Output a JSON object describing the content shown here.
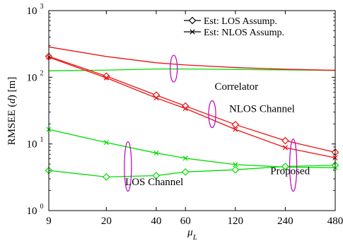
{
  "chart_data": {
    "type": "line",
    "title": "",
    "xlabel": "μ_L",
    "ylabel": "RMSEE (d) [m]",
    "x_scale": "log",
    "y_scale": "log",
    "xlim": [
      9,
      480
    ],
    "ylim": [
      1,
      1000
    ],
    "x_ticks": [
      9,
      20,
      40,
      60,
      120,
      240,
      480
    ],
    "x_tick_labels": [
      "9",
      "20",
      "40",
      "60",
      "120",
      "240",
      "480"
    ],
    "y_ticks": [
      1,
      10,
      100,
      1000
    ],
    "y_tick_labels": [
      "10",
      "10",
      "10",
      "10"
    ],
    "y_tick_exponents": [
      "0",
      "1",
      "2",
      "3"
    ],
    "grid": false,
    "legend": {
      "position": "top-right",
      "entries": [
        {
          "label": "Est: LOS Assump.",
          "marker": "diamond"
        },
        {
          "label": "Est: NLOS Assump.",
          "marker": "x"
        }
      ]
    },
    "annotations": [
      {
        "text": "Correlator",
        "x": 90,
        "y": 65
      },
      {
        "text": "NLOS Channel",
        "x": 110,
        "y": 30
      },
      {
        "text": "LOS Channel",
        "x": 26,
        "y": 2.4
      },
      {
        "text": "Proposed",
        "x": 195,
        "y": 3.5
      }
    ],
    "series": [
      {
        "group": "Correlator",
        "assumption": "LOS",
        "color": "#00dd00",
        "marker": "none",
        "x": [
          9,
          20,
          40,
          60,
          120,
          240,
          480
        ],
        "y": [
          125,
          128,
          133,
          133,
          131,
          129,
          127
        ]
      },
      {
        "group": "Correlator",
        "assumption": "NLOS",
        "color": "#ee1111",
        "marker": "none",
        "x": [
          9,
          20,
          40,
          60,
          120,
          240,
          480
        ],
        "y": [
          285,
          205,
          165,
          153,
          140,
          132,
          127
        ]
      },
      {
        "group": "Proposed",
        "channel": "NLOS",
        "assumption": "LOS",
        "color": "#ee1111",
        "marker": "diamond",
        "x": [
          9,
          20,
          40,
          60,
          120,
          240,
          480
        ],
        "y": [
          205,
          104,
          54,
          37,
          19.5,
          11.2,
          7.5
        ]
      },
      {
        "group": "Proposed",
        "channel": "NLOS",
        "assumption": "NLOS",
        "color": "#ee1111",
        "marker": "x",
        "x": [
          9,
          20,
          40,
          60,
          120,
          240,
          480
        ],
        "y": [
          200,
          98,
          49,
          34,
          16.5,
          8.8,
          6.2
        ]
      },
      {
        "group": "Proposed",
        "channel": "LOS",
        "assumption": "NLOS",
        "color": "#00dd00",
        "marker": "x",
        "x": [
          9,
          20,
          40,
          60,
          120,
          240,
          480
        ],
        "y": [
          16.5,
          10.5,
          7.3,
          6.1,
          4.9,
          4.5,
          4.4
        ]
      },
      {
        "group": "Proposed",
        "channel": "LOS",
        "assumption": "LOS",
        "color": "#00dd00",
        "marker": "diamond",
        "x": [
          9,
          20,
          40,
          60,
          120,
          240,
          480
        ],
        "y": [
          4.0,
          3.2,
          3.35,
          3.8,
          4.1,
          4.6,
          4.8
        ]
      }
    ],
    "ellipses": [
      {
        "name": "correlator-ellipse",
        "color": "#bb00bb",
        "x": 51,
        "y": 135
      },
      {
        "name": "nlos-ellipse",
        "color": "#bb00bb",
        "x": 87,
        "y": 28
      },
      {
        "name": "los-ellipse",
        "color": "#bb00bb",
        "x": 27,
        "y": 4.6
      },
      {
        "name": "proposed-ellipse",
        "color": "#bb00bb",
        "x": 268,
        "y": 4.8
      }
    ]
  }
}
